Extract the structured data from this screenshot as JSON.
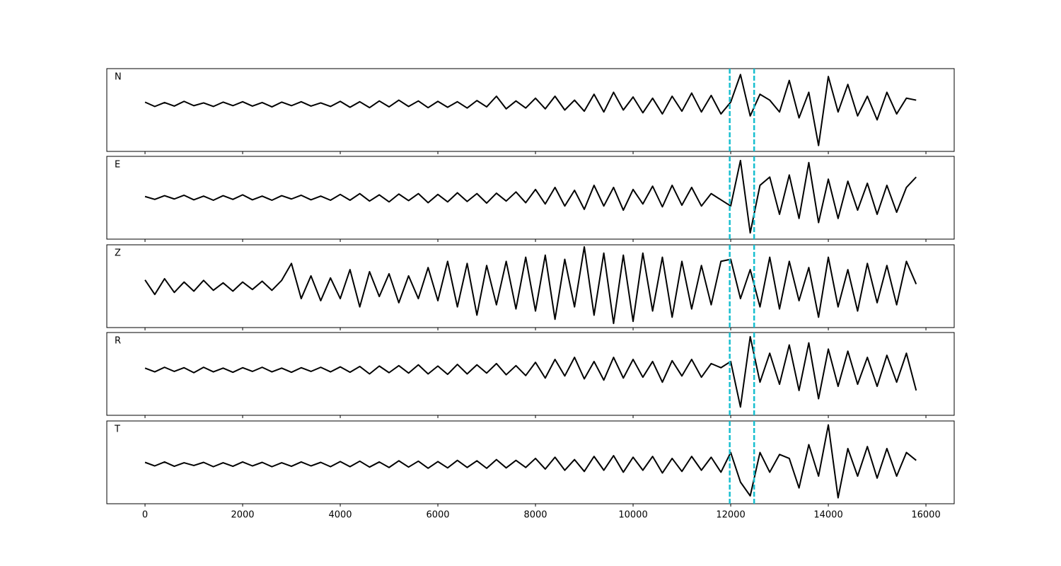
{
  "chart_data": {
    "type": "line",
    "x": [
      0,
      200,
      400,
      600,
      800,
      1000,
      1200,
      1400,
      1600,
      1800,
      2000,
      2200,
      2400,
      2600,
      2800,
      3000,
      3200,
      3400,
      3600,
      3800,
      4000,
      4200,
      4400,
      4600,
      4800,
      5000,
      5200,
      5400,
      5600,
      5800,
      6000,
      6200,
      6400,
      6600,
      6800,
      7000,
      7200,
      7400,
      7600,
      7800,
      8000,
      8200,
      8400,
      8600,
      8800,
      9000,
      9200,
      9400,
      9600,
      9800,
      10000,
      10200,
      10400,
      10600,
      10800,
      11000,
      11200,
      11400,
      11600,
      11800,
      12000,
      12200,
      12400,
      12600,
      12800,
      13000,
      13200,
      13400,
      13600,
      13800,
      14000,
      14200,
      14400,
      14600,
      14800,
      15000,
      15200,
      15400,
      15600,
      15800
    ],
    "xlim": [
      -783,
      16579
    ],
    "xticks": [
      0,
      2000,
      4000,
      6000,
      8000,
      10000,
      12000,
      14000,
      16000
    ],
    "vlines": [
      11980,
      12480
    ],
    "vline_color": "#17becf",
    "series": [
      {
        "name": "N",
        "color": "#000000",
        "ylim": [
          -1.2,
          0.9
        ],
        "values": [
          0.05,
          -0.06,
          0.04,
          -0.05,
          0.07,
          -0.04,
          0.03,
          -0.06,
          0.05,
          -0.04,
          0.06,
          -0.05,
          0.04,
          -0.07,
          0.05,
          -0.04,
          0.06,
          -0.05,
          0.03,
          -0.06,
          0.07,
          -0.08,
          0.06,
          -0.09,
          0.08,
          -0.07,
          0.1,
          -0.06,
          0.08,
          -0.09,
          0.07,
          -0.08,
          0.06,
          -0.1,
          0.09,
          -0.07,
          0.2,
          -0.12,
          0.08,
          -0.1,
          0.15,
          -0.12,
          0.2,
          -0.15,
          0.1,
          -0.18,
          0.25,
          -0.2,
          0.3,
          -0.15,
          0.18,
          -0.22,
          0.15,
          -0.25,
          0.2,
          -0.18,
          0.28,
          -0.2,
          0.22,
          -0.25,
          0.05,
          0.75,
          -0.3,
          0.25,
          0.1,
          -0.2,
          0.6,
          -0.35,
          0.3,
          -1.05,
          0.7,
          -0.2,
          0.5,
          -0.3,
          0.2,
          -0.4,
          0.3,
          -0.25,
          0.15,
          0.1
        ]
      },
      {
        "name": "E",
        "color": "#000000",
        "ylim": [
          -1,
          1
        ],
        "values": [
          0.03,
          -0.04,
          0.05,
          -0.03,
          0.06,
          -0.05,
          0.04,
          -0.06,
          0.05,
          -0.04,
          0.07,
          -0.05,
          0.04,
          -0.06,
          0.05,
          -0.03,
          0.06,
          -0.05,
          0.04,
          -0.06,
          0.08,
          -0.06,
          0.1,
          -0.08,
          0.07,
          -0.1,
          0.09,
          -0.07,
          0.1,
          -0.12,
          0.08,
          -0.1,
          0.12,
          -0.09,
          0.1,
          -0.13,
          0.11,
          -0.08,
          0.14,
          -0.12,
          0.2,
          -0.15,
          0.25,
          -0.2,
          0.18,
          -0.28,
          0.3,
          -0.2,
          0.25,
          -0.3,
          0.2,
          -0.15,
          0.28,
          -0.22,
          0.3,
          -0.18,
          0.25,
          -0.2,
          0.1,
          -0.05,
          -0.2,
          0.9,
          -0.85,
          0.3,
          0.5,
          -0.4,
          0.55,
          -0.5,
          0.85,
          -0.6,
          0.45,
          -0.5,
          0.4,
          -0.3,
          0.35,
          -0.4,
          0.3,
          -0.35,
          0.25,
          0.5
        ]
      },
      {
        "name": "Z",
        "color": "#000000",
        "ylim": [
          -1,
          1
        ],
        "values": [
          0.15,
          -0.2,
          0.18,
          -0.15,
          0.1,
          -0.12,
          0.14,
          -0.1,
          0.08,
          -0.12,
          0.1,
          -0.08,
          0.12,
          -0.1,
          0.14,
          0.55,
          -0.3,
          0.25,
          -0.35,
          0.2,
          -0.3,
          0.4,
          -0.5,
          0.35,
          -0.25,
          0.3,
          -0.4,
          0.25,
          -0.3,
          0.45,
          -0.35,
          0.6,
          -0.5,
          0.55,
          -0.7,
          0.5,
          -0.45,
          0.6,
          -0.55,
          0.7,
          -0.6,
          0.75,
          -0.8,
          0.65,
          -0.5,
          0.95,
          -0.7,
          0.8,
          -0.9,
          0.75,
          -0.85,
          0.8,
          -0.6,
          0.7,
          -0.75,
          0.6,
          -0.55,
          0.5,
          -0.45,
          0.6,
          0.65,
          -0.3,
          0.4,
          -0.5,
          0.7,
          -0.55,
          0.6,
          -0.35,
          0.45,
          -0.75,
          0.7,
          -0.5,
          0.4,
          -0.6,
          0.55,
          -0.4,
          0.5,
          -0.45,
          0.6,
          0.05
        ]
      },
      {
        "name": "R",
        "color": "#000000",
        "ylim": [
          -1.1,
          0.9
        ],
        "values": [
          0.04,
          -0.05,
          0.06,
          -0.04,
          0.05,
          -0.07,
          0.06,
          -0.05,
          0.04,
          -0.06,
          0.05,
          -0.04,
          0.06,
          -0.05,
          0.04,
          -0.06,
          0.05,
          -0.04,
          0.06,
          -0.05,
          0.07,
          -0.06,
          0.08,
          -0.1,
          0.09,
          -0.07,
          0.1,
          -0.08,
          0.12,
          -0.1,
          0.09,
          -0.11,
          0.13,
          -0.1,
          0.12,
          -0.08,
          0.15,
          -0.12,
          0.1,
          -0.14,
          0.18,
          -0.2,
          0.25,
          -0.15,
          0.3,
          -0.22,
          0.2,
          -0.25,
          0.3,
          -0.2,
          0.25,
          -0.18,
          0.2,
          -0.3,
          0.22,
          -0.15,
          0.25,
          -0.18,
          0.15,
          0.05,
          0.2,
          -0.9,
          0.8,
          -0.3,
          0.4,
          -0.35,
          0.6,
          -0.5,
          0.65,
          -0.7,
          0.5,
          -0.4,
          0.45,
          -0.35,
          0.3,
          -0.4,
          0.35,
          -0.3,
          0.4,
          -0.5
        ]
      },
      {
        "name": "T",
        "color": "#000000",
        "ylim": [
          -1,
          1.1
        ],
        "values": [
          0.05,
          -0.04,
          0.06,
          -0.05,
          0.04,
          -0.03,
          0.05,
          -0.06,
          0.04,
          -0.05,
          0.06,
          -0.04,
          0.05,
          -0.06,
          0.04,
          -0.05,
          0.06,
          -0.04,
          0.05,
          -0.06,
          0.07,
          -0.06,
          0.08,
          -0.07,
          0.06,
          -0.08,
          0.09,
          -0.07,
          0.08,
          -0.1,
          0.07,
          -0.09,
          0.1,
          -0.08,
          0.09,
          -0.1,
          0.12,
          -0.09,
          0.1,
          -0.08,
          0.15,
          -0.12,
          0.18,
          -0.15,
          0.12,
          -0.18,
          0.2,
          -0.15,
          0.22,
          -0.2,
          0.18,
          -0.15,
          0.2,
          -0.22,
          0.15,
          -0.18,
          0.2,
          -0.15,
          0.18,
          -0.2,
          0.3,
          -0.45,
          -0.8,
          0.3,
          -0.2,
          0.25,
          0.15,
          -0.6,
          0.5,
          -0.3,
          1.0,
          -0.85,
          0.4,
          -0.3,
          0.45,
          -0.35,
          0.4,
          -0.3,
          0.3,
          0.1
        ]
      }
    ]
  }
}
